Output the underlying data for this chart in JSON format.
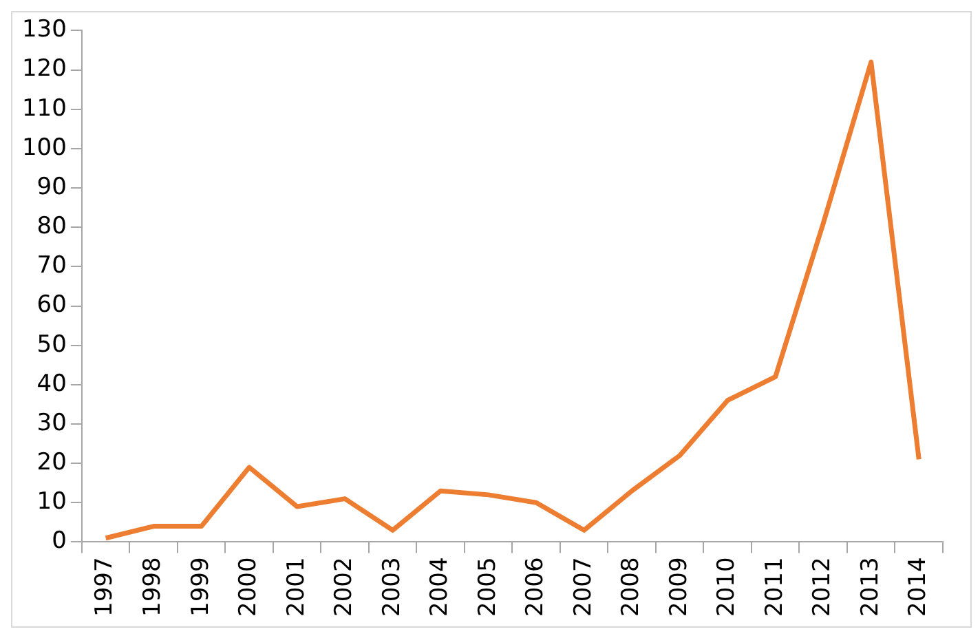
{
  "chart_data": {
    "type": "line",
    "categories": [
      "1997",
      "1998",
      "1999",
      "2000",
      "2001",
      "2002",
      "2003",
      "2004",
      "2005",
      "2006",
      "2007",
      "2008",
      "2009",
      "2010",
      "2011",
      "2012",
      "2013",
      "2014"
    ],
    "series": [
      {
        "color": "#ed7d31",
        "values": [
          1,
          4,
          4,
          19,
          9,
          11,
          3,
          13,
          12,
          10,
          3,
          13,
          22,
          36,
          42,
          81,
          122,
          21
        ]
      }
    ],
    "ylim": [
      0,
      130
    ],
    "yticks": [
      0,
      10,
      20,
      30,
      40,
      50,
      60,
      70,
      80,
      90,
      100,
      110,
      120,
      130
    ],
    "grid": false,
    "legend": false,
    "marker": "none",
    "line_style": "solid"
  }
}
